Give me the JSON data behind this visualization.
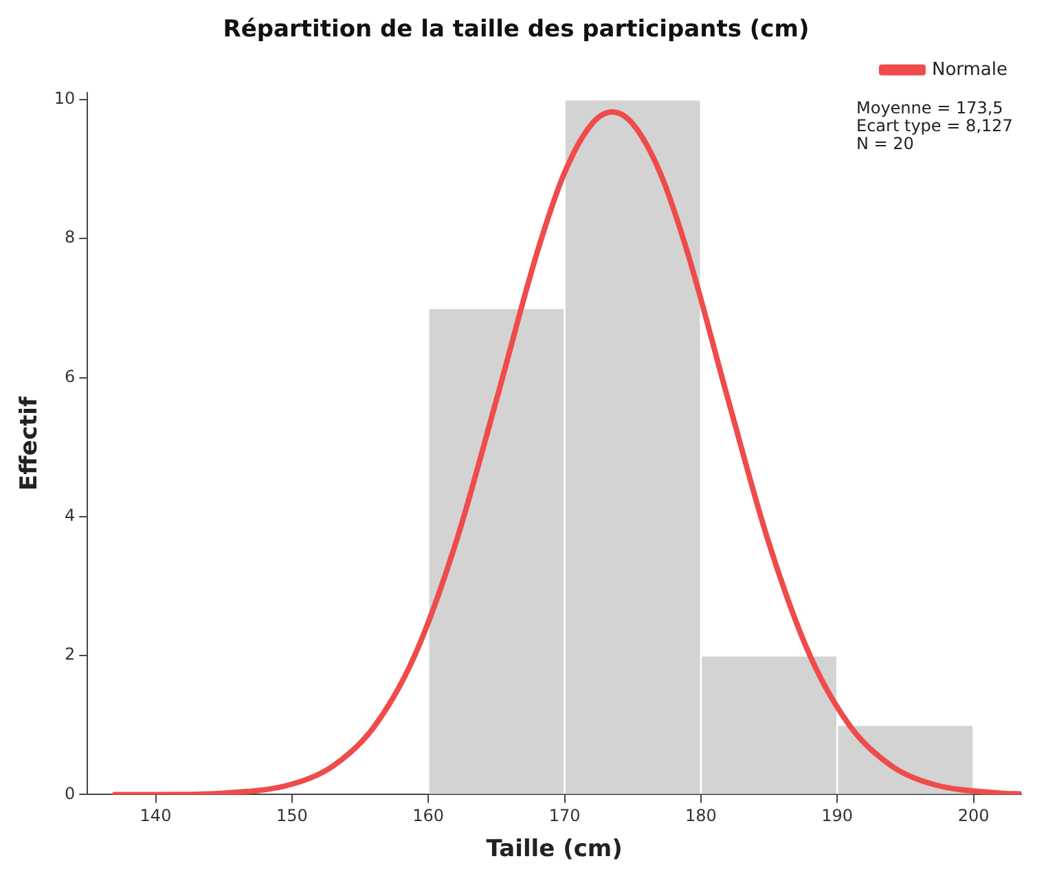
{
  "chart_data": {
    "type": "histogram",
    "title": "Répartition de la taille des participants (cm)",
    "xlabel": "Taille (cm)",
    "ylabel": "Effectif",
    "bins": [
      160,
      170,
      180,
      190,
      200
    ],
    "values": [
      7,
      10,
      2,
      1
    ],
    "color": "#d3d3d3",
    "series": [
      {
        "type": "line",
        "name": "Normale",
        "color": "#f04b4b",
        "x": [
          137,
          140,
          145,
          150,
          153,
          156,
          159,
          162,
          165,
          168,
          170,
          172,
          173.5,
          175,
          177,
          179,
          182,
          185,
          188,
          191,
          194,
          197,
          202,
          203.5
        ],
        "values": [
          0,
          0,
          0.02,
          0.15,
          0.41,
          0.97,
          2,
          3.61,
          5.68,
          7.81,
          8.95,
          9.65,
          9.82,
          9.65,
          8.95,
          7.81,
          5.68,
          3.61,
          2,
          0.97,
          0.41,
          0.15,
          0.02,
          0.01
        ]
      }
    ],
    "xlim": [
      135,
      203.5
    ],
    "xticks": [
      140,
      150,
      160,
      170,
      180,
      190,
      200
    ],
    "ylim": [
      0,
      10.1
    ],
    "yticks": [
      0,
      2,
      4,
      6,
      8,
      10
    ],
    "grid": false,
    "legend": "top right",
    "marker": "none",
    "line_style": "solid",
    "annotations": [
      "Moyenne = 173,5",
      "Ecart type = 8,127",
      "N = 20"
    ]
  }
}
